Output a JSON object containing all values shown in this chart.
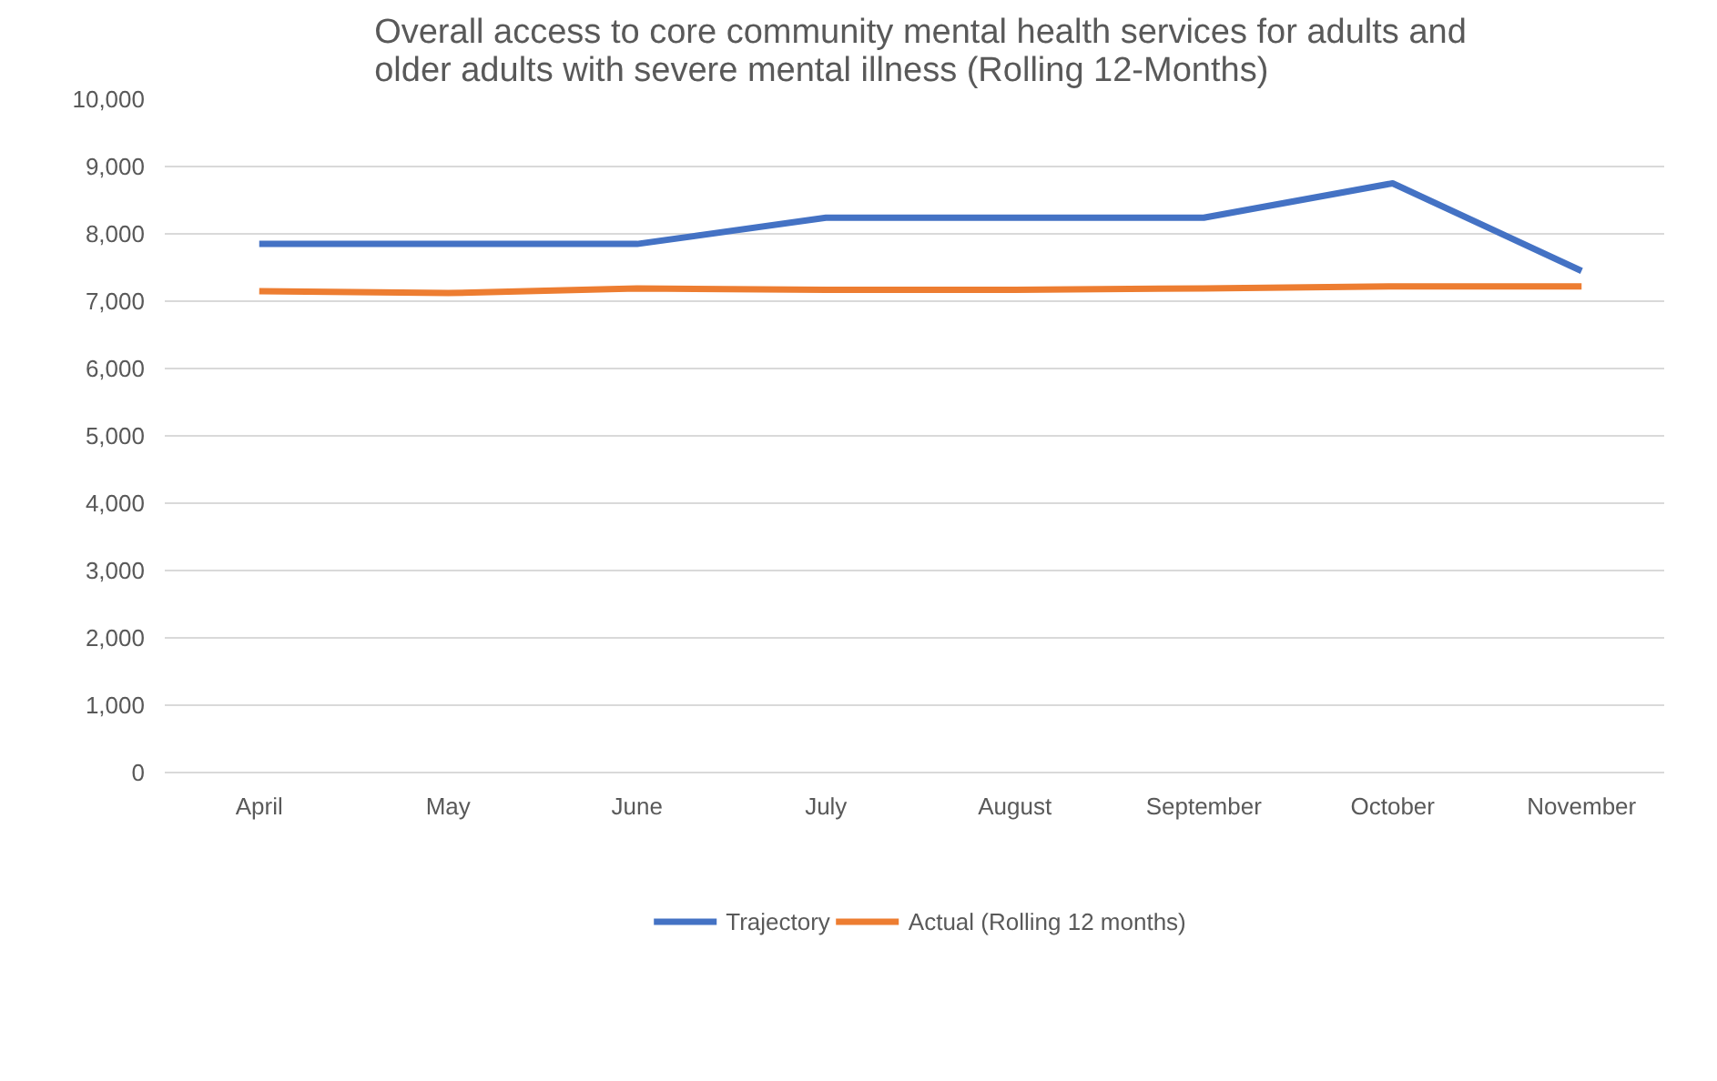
{
  "chart_data": {
    "type": "line",
    "title": "Overall access to core community mental health services for adults and older adults with severe mental illness (Rolling 12-Months)",
    "categories": [
      "April",
      "May",
      "June",
      "July",
      "August",
      "September",
      "October",
      "November"
    ],
    "series": [
      {
        "name": "Trajectory",
        "color": "#4472c4",
        "values": [
          7850,
          7850,
          7850,
          8240,
          8240,
          8240,
          8750,
          7450
        ]
      },
      {
        "name": "Actual (Rolling 12 months)",
        "color": "#ed7d31",
        "values": [
          7150,
          7120,
          7190,
          7170,
          7170,
          7190,
          7220,
          7220
        ]
      }
    ],
    "ylim": [
      0,
      10000
    ],
    "yticks": [
      {
        "value": 0,
        "label": "0"
      },
      {
        "value": 1000,
        "label": "1,000"
      },
      {
        "value": 2000,
        "label": "2,000"
      },
      {
        "value": 3000,
        "label": "3,000"
      },
      {
        "value": 4000,
        "label": "4,000"
      },
      {
        "value": 5000,
        "label": "5,000"
      },
      {
        "value": 6000,
        "label": "6,000"
      },
      {
        "value": 7000,
        "label": "7,000"
      },
      {
        "value": 8000,
        "label": "8,000"
      },
      {
        "value": 9000,
        "label": "9,000"
      },
      {
        "value": 10000,
        "label": "10,000"
      }
    ],
    "grid": "y",
    "legend": "bottom",
    "marker": "none",
    "line_style": "solid"
  }
}
